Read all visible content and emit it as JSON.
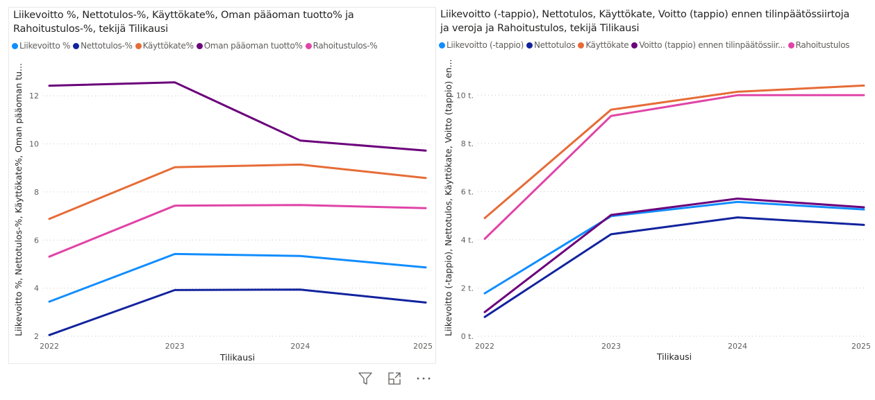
{
  "chart_data": [
    {
      "type": "line",
      "title": "Liikevoitto %, Nettotulos-%, Käyttökate%, Oman pääoman tuotto% ja Rahoitustulos-%, tekijä Tilikausi",
      "title_lines": [
        "Liikevoitto %, Nettotulos-%, Käyttökate%, Oman pääoman tuotto% ja",
        "Rahoitustulos-%, tekijä Tilikausi"
      ],
      "xlabel": "Tilikausi",
      "ylabel": "Liikevoitto %, Nettotulos-%, Käyttökate%, Oman pääoman tu...",
      "x": [
        "2022",
        "2023",
        "2024",
        "2025"
      ],
      "ylim": [
        2,
        12.9
      ],
      "yticks": [
        2,
        4,
        6,
        8,
        10,
        12
      ],
      "ytick_labels": [
        "2",
        "4",
        "6",
        "8",
        "10",
        "12"
      ],
      "grid": true,
      "legend_position": "top-left",
      "series": [
        {
          "name": "Liikevoitto %",
          "color": "#118DFF",
          "values": [
            3.44,
            5.42,
            5.34,
            4.86
          ]
        },
        {
          "name": "Nettotulos-%",
          "color": "#12239E",
          "values": [
            2.05,
            3.92,
            3.94,
            3.4
          ]
        },
        {
          "name": "Käyttökate%",
          "color": "#E66C37",
          "values": [
            6.88,
            9.03,
            9.14,
            8.58
          ]
        },
        {
          "name": "Oman pääoman tuotto%",
          "color": "#6B007B",
          "values": [
            12.42,
            12.56,
            10.14,
            9.72
          ]
        },
        {
          "name": "Rahoitustulos-%",
          "color": "#E044A7",
          "values": [
            5.31,
            7.43,
            7.46,
            7.33
          ]
        }
      ]
    },
    {
      "type": "line",
      "title": "Liikevoitto (-tappio), Nettotulos, Käyttökate, Voitto (tappio) ennen tilinpäätössiirtoja ja veroja ja Rahoitustulos, tekijä Tilikausi",
      "title_lines": [
        "Liikevoitto (-tappio), Nettotulos, Käyttökate, Voitto (tappio) ennen tilinpäätössiirtoja",
        "ja veroja ja Rahoitustulos, tekijä Tilikausi"
      ],
      "xlabel": "Tilikausi",
      "ylabel": "Liikevoitto (-tappio), Nettotulos, Käyttökate, Voitto (tappio) en...",
      "x": [
        "2022",
        "2023",
        "2024",
        "2025"
      ],
      "ylim": [
        0,
        10.9
      ],
      "yticks": [
        0,
        2,
        4,
        6,
        8,
        10
      ],
      "ytick_labels": [
        "0 t.",
        "2 t.",
        "4 t.",
        "6 t.",
        "8 t.",
        "10 t."
      ],
      "units": "thousands (t.)",
      "grid": true,
      "legend_position": "top-left",
      "series": [
        {
          "name": "Liikevoitto (-tappio)",
          "legend_label": "Liikevoitto (-tappio)",
          "color": "#118DFF",
          "values": [
            1.78,
            4.98,
            5.57,
            5.26
          ]
        },
        {
          "name": "Nettotulos",
          "legend_label": "Nettotulos",
          "color": "#12239E",
          "values": [
            0.8,
            4.23,
            4.93,
            4.62
          ]
        },
        {
          "name": "Käyttökate",
          "legend_label": "Käyttökate",
          "color": "#E66C37",
          "values": [
            4.9,
            9.4,
            10.14,
            10.4
          ]
        },
        {
          "name": "Voitto (tappio) ennen tilinpäätössiirtoja ja veroja",
          "legend_label": "Voitto (tappio) ennen tilinpäätössiir...",
          "color": "#6B007B",
          "values": [
            1.0,
            5.03,
            5.71,
            5.35
          ]
        },
        {
          "name": "Rahoitustulos",
          "legend_label": "Rahoitustulos",
          "color": "#E044A7",
          "values": [
            4.04,
            9.14,
            10.0,
            10.0
          ]
        }
      ]
    }
  ],
  "toolbar": {
    "icons": [
      "filter-icon",
      "focus-mode-icon",
      "more-options-icon"
    ],
    "more_label": "⋯"
  }
}
